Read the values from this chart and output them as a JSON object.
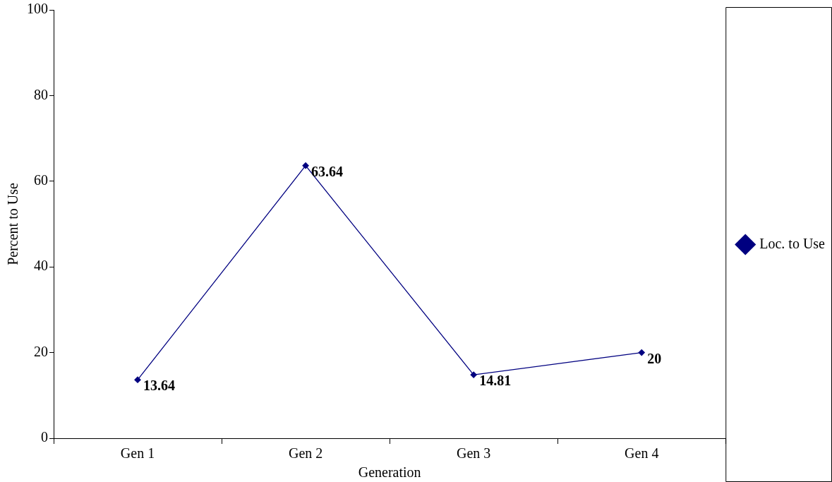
{
  "chart_data": {
    "type": "line",
    "xlabel": "Generation",
    "ylabel": "Percent to Use",
    "categories": [
      "Gen 1",
      "Gen 2",
      "Gen 3",
      "Gen 4"
    ],
    "series": [
      {
        "name": "Loc. to Use",
        "color": "#000080",
        "values": [
          13.64,
          63.64,
          14.81,
          20
        ]
      }
    ],
    "ylim": [
      0,
      100
    ],
    "yticks": [
      0,
      20,
      40,
      60,
      80,
      100
    ],
    "grid": false,
    "legend": "right",
    "marker": "diamond",
    "line_style": "solid",
    "data_labels": true
  }
}
